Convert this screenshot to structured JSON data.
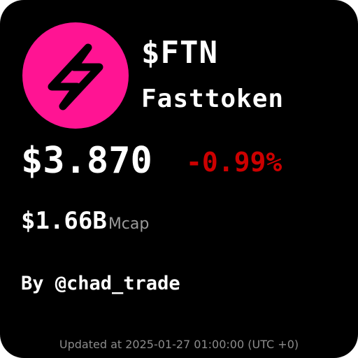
{
  "token": {
    "symbol": "$FTN",
    "name": "Fasttoken",
    "logo_icon": "lightning-bolt-icon",
    "logo_color": "#ff1493"
  },
  "price": {
    "value": "$3.870",
    "change": "-0.99%",
    "change_color": "#cc0000"
  },
  "market_cap": {
    "value": "$1.66B",
    "label": "Mcap"
  },
  "author": "By @chad_trade",
  "updated": "Updated at 2025-01-27 01:00:00 (UTC +0)"
}
